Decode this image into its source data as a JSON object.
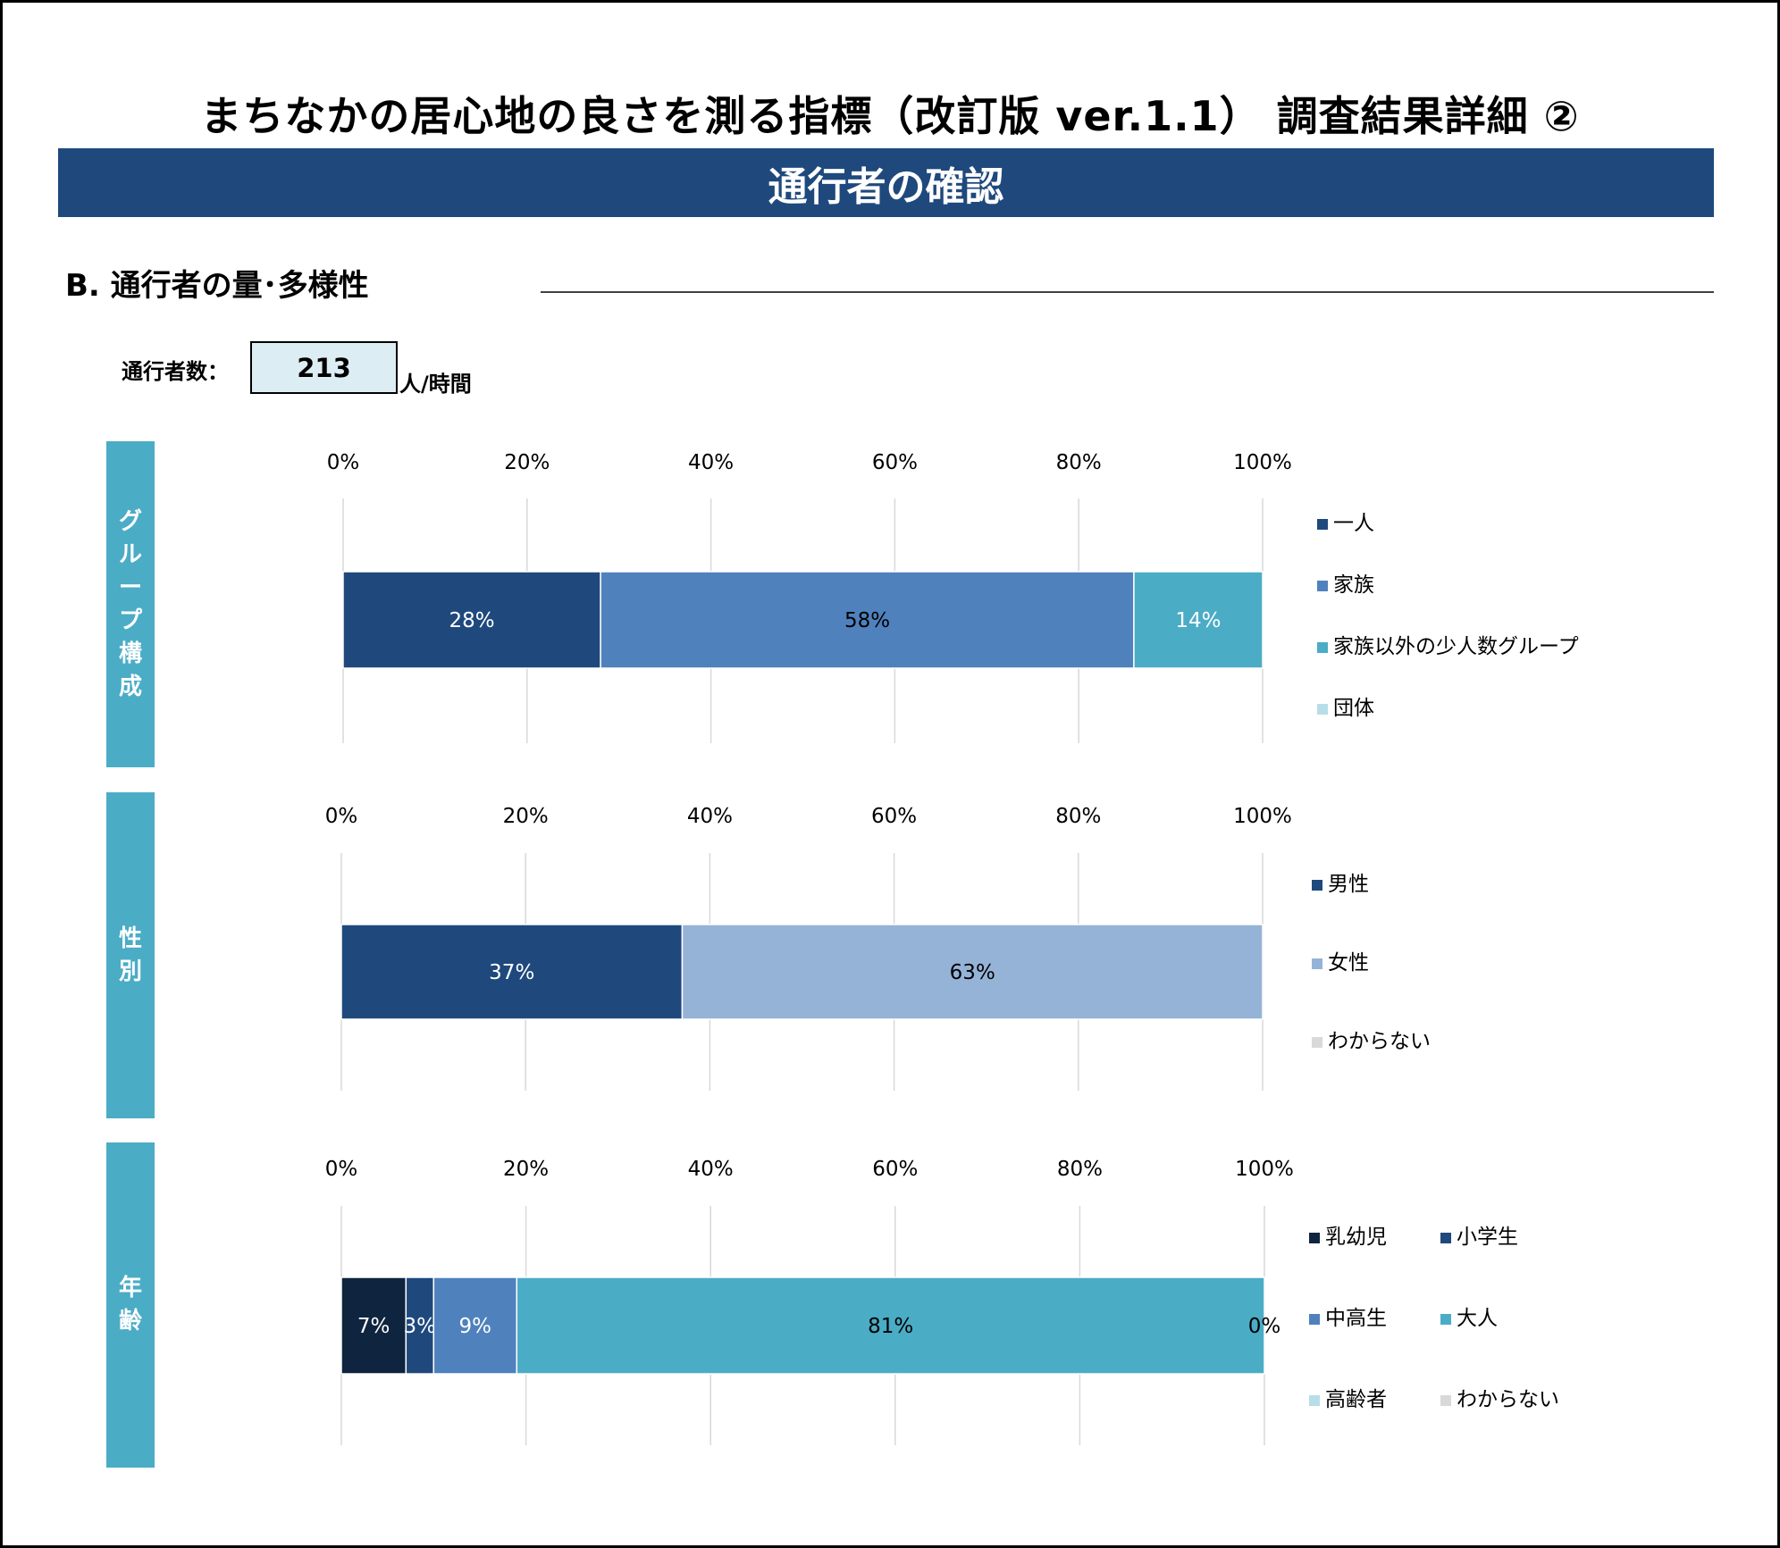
{
  "page": {
    "title": "まちなかの居心地の良さを測る指標（改訂版 ver.1.1） 調査結果詳細 ②",
    "banner": "通行者の確認",
    "section_title": "B.  通行者の量･多様性",
    "count_label": "通行者数：",
    "count_value": "213",
    "count_unit": "人/時間"
  },
  "panels": [
    {
      "label_chars": [
        "グ",
        "ル",
        "ー",
        "プ",
        "構",
        "成"
      ]
    },
    {
      "label_chars": [
        "性",
        "別"
      ]
    },
    {
      "label_chars": [
        "年",
        "齢"
      ]
    }
  ],
  "chart_data": [
    {
      "type": "bar",
      "orientation": "horizontal-stacked-100",
      "title": "",
      "xlim": [
        0,
        100
      ],
      "ticks": [
        "0%",
        "20%",
        "40%",
        "60%",
        "80%",
        "100%"
      ],
      "grid": true,
      "legend_position": "right",
      "series": [
        {
          "name": "一人",
          "value": 28,
          "label": "28%",
          "color": "#1f497d",
          "label_color": "#ffffff"
        },
        {
          "name": "家族",
          "value": 58,
          "label": "58%",
          "color": "#4f81bd",
          "label_color": "#000000"
        },
        {
          "name": "家族以外の少人数グループ",
          "value": 14,
          "label": "14%",
          "color": "#4bacc6",
          "label_color": "#ffffff"
        },
        {
          "name": "団体",
          "value": 0,
          "label": "",
          "color": "#b7dee8",
          "label_color": "#000000"
        }
      ]
    },
    {
      "type": "bar",
      "orientation": "horizontal-stacked-100",
      "title": "",
      "xlim": [
        0,
        100
      ],
      "ticks": [
        "0%",
        "20%",
        "40%",
        "60%",
        "80%",
        "100%"
      ],
      "grid": true,
      "legend_position": "right",
      "series": [
        {
          "name": "男性",
          "value": 37,
          "label": "37%",
          "color": "#1f497d",
          "label_color": "#ffffff"
        },
        {
          "name": "女性",
          "value": 63,
          "label": "63%",
          "color": "#95b3d7",
          "label_color": "#000000"
        },
        {
          "name": "わからない",
          "value": 0,
          "label": "",
          "color": "#d9d9d9",
          "label_color": "#000000"
        }
      ]
    },
    {
      "type": "bar",
      "orientation": "horizontal-stacked-100",
      "title": "",
      "xlim": [
        0,
        100
      ],
      "ticks": [
        "0%",
        "20%",
        "40%",
        "60%",
        "80%",
        "100%"
      ],
      "grid": true,
      "legend_position": "right",
      "series": [
        {
          "name": "乳幼児",
          "value": 7,
          "label": "7%",
          "color": "#0f243e",
          "label_color": "#ffffff"
        },
        {
          "name": "小学生",
          "value": 3,
          "label": "3%",
          "color": "#1f497d",
          "label_color": "#ffffff"
        },
        {
          "name": "中高生",
          "value": 9,
          "label": "9%",
          "color": "#4f81bd",
          "label_color": "#ffffff"
        },
        {
          "name": "大人",
          "value": 81,
          "label": "81%",
          "color": "#4bacc6",
          "label_color": "#000000"
        },
        {
          "name": "高齢者",
          "value": 0,
          "label": "0%",
          "color": "#b7dee8",
          "label_color": "#000000"
        },
        {
          "name": "わからない",
          "value": 0,
          "label": "",
          "color": "#d9d9d9",
          "label_color": "#000000"
        }
      ]
    }
  ]
}
